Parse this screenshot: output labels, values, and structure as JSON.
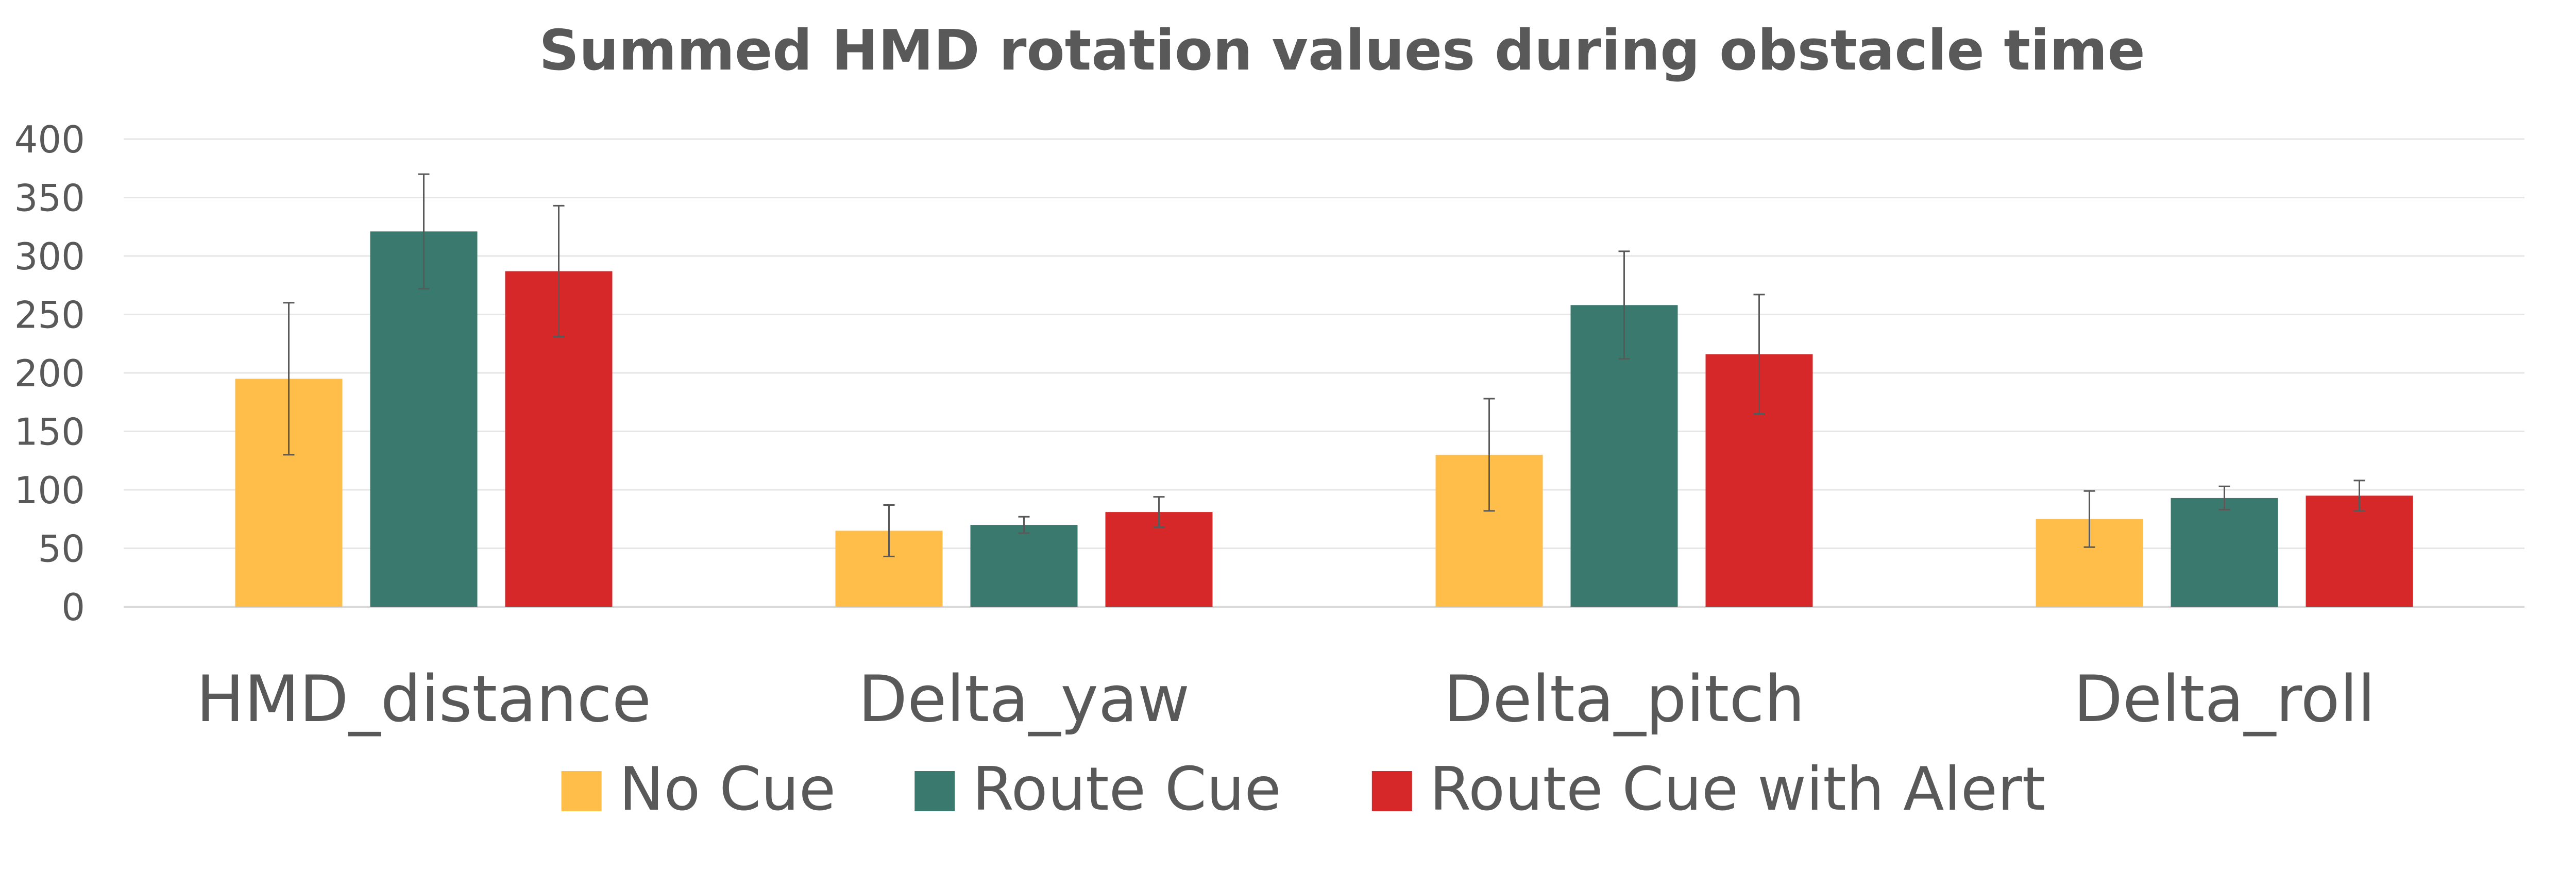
{
  "chart_data": {
    "type": "bar",
    "title": "Summed HMD rotation values during obstacle time",
    "xlabel": "",
    "ylabel": "",
    "ylim": [
      0,
      400
    ],
    "yticks": [
      0,
      50,
      100,
      150,
      200,
      250,
      300,
      350,
      400
    ],
    "grid": true,
    "legend_position": "bottom",
    "categories": [
      "HMD_distance",
      "Delta_yaw",
      "Delta_pitch",
      "Delta_roll"
    ],
    "series": [
      {
        "name": "No Cue",
        "color": "#FFBE4A",
        "values": [
          195,
          65,
          130,
          75
        ],
        "error": [
          65,
          22,
          48,
          24
        ]
      },
      {
        "name": "Route Cue",
        "color": "#3A7A6E",
        "values": [
          321,
          70,
          258,
          93
        ],
        "error": [
          49,
          7,
          46,
          10
        ]
      },
      {
        "name": "Route Cue with Alert",
        "color": "#D62828",
        "values": [
          287,
          81,
          216,
          95
        ],
        "error": [
          56,
          13,
          51,
          13
        ]
      }
    ]
  }
}
